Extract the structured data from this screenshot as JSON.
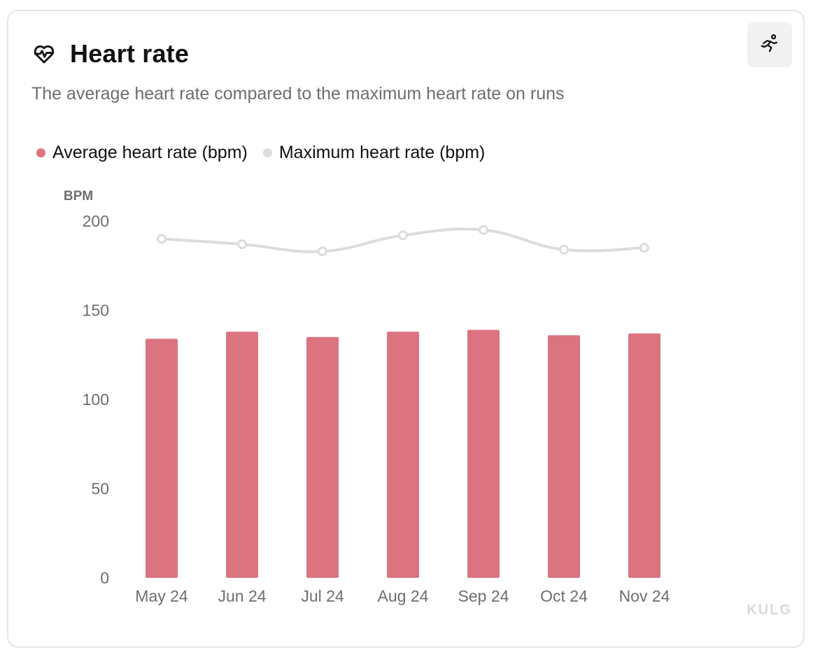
{
  "card": {
    "title": "Heart rate",
    "subtitle": "The average heart rate compared to the maximum heart rate on runs",
    "watermark": "KULG",
    "icons": {
      "title_icon": "heart-pulse-icon",
      "action_icon": "running-person-icon"
    }
  },
  "colors": {
    "average": "#dc7380",
    "maximum": "#dcdcdc",
    "axis_text": "#6e6e6e"
  },
  "chart_data": {
    "type": "bar",
    "title": "Heart rate",
    "ylabel": "BPM",
    "xlabel": "",
    "ylim": [
      0,
      200
    ],
    "yticks": [
      0,
      50,
      100,
      150,
      200
    ],
    "categories": [
      "May 24",
      "Jun 24",
      "Jul 24",
      "Aug 24",
      "Sep 24",
      "Oct 24",
      "Nov 24"
    ],
    "series": [
      {
        "name": "Average heart rate (bpm)",
        "type": "bar",
        "values": [
          134,
          138,
          135,
          138,
          139,
          136,
          137
        ]
      },
      {
        "name": "Maximum heart rate (bpm)",
        "type": "line",
        "values": [
          190,
          187,
          183,
          192,
          195,
          184,
          185
        ]
      }
    ],
    "legend": "top-left",
    "grid": false
  }
}
